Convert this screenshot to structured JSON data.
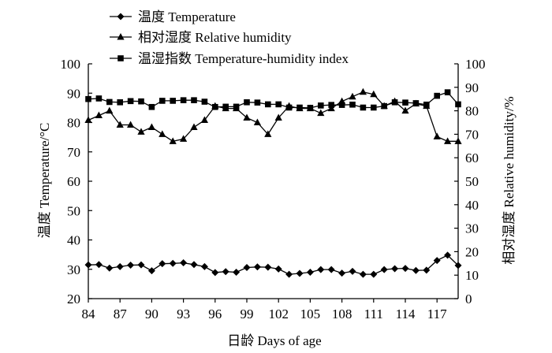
{
  "chart_data": {
    "type": "line",
    "xlabel": "日龄 Days of age",
    "ylabel_left": "温度 Temperature/°C",
    "ylabel_right": "相对湿度 Relative humidity/%",
    "x_ticks": [
      "84",
      "87",
      "90",
      "93",
      "96",
      "99",
      "102",
      "105",
      "108",
      "111",
      "114",
      "117"
    ],
    "y_left_ticks": [
      "20",
      "30",
      "40",
      "50",
      "60",
      "70",
      "80",
      "90",
      "100"
    ],
    "y_right_ticks": [
      "0",
      "10",
      "20",
      "30",
      "40",
      "50",
      "60",
      "70",
      "80",
      "90",
      "100"
    ],
    "xlim": [
      84,
      119
    ],
    "ylim_left": [
      20,
      100
    ],
    "ylim_right": [
      0,
      100
    ],
    "grid": false,
    "legend_position": "top-left",
    "series": [
      {
        "name": "温度 Temperature",
        "marker": "diamond",
        "axis": "left",
        "x": [
          84,
          85,
          86,
          87,
          88,
          89,
          90,
          91,
          92,
          93,
          94,
          95,
          96,
          97,
          98,
          99,
          100,
          101,
          102,
          103,
          104,
          105,
          106,
          107,
          108,
          109,
          110,
          111,
          112,
          113,
          114,
          115,
          116,
          117,
          118,
          119
        ],
        "values": [
          31.5,
          31.6,
          30.4,
          30.9,
          31.4,
          31.5,
          29.5,
          31.9,
          32.0,
          32.2,
          31.6,
          30.9,
          28.9,
          29.2,
          29.0,
          30.6,
          30.8,
          30.7,
          30.1,
          28.3,
          28.6,
          29.0,
          29.9,
          29.9,
          28.7,
          29.3,
          28.3,
          28.3,
          29.9,
          30.2,
          30.3,
          29.6,
          29.7,
          33.0,
          34.8,
          31.3
        ]
      },
      {
        "name": "相对湿度  Relative humidity",
        "marker": "triangle",
        "axis": "right",
        "x": [
          84,
          85,
          86,
          87,
          88,
          89,
          90,
          91,
          92,
          93,
          94,
          95,
          96,
          97,
          98,
          99,
          100,
          101,
          102,
          103,
          104,
          105,
          106,
          107,
          108,
          109,
          110,
          111,
          112,
          113,
          114,
          115,
          116,
          117,
          118,
          119
        ],
        "values": [
          76,
          78,
          80,
          74,
          74,
          71,
          73,
          70,
          67,
          68,
          73,
          76,
          82,
          81,
          81,
          77,
          75,
          70,
          77,
          82,
          81,
          81,
          79,
          81,
          84,
          86,
          88,
          87,
          82,
          84,
          80,
          83,
          82,
          69,
          67,
          67
        ]
      },
      {
        "name": "温湿指数  Temperature-humidity index",
        "marker": "square",
        "axis": "left",
        "x": [
          84,
          85,
          86,
          87,
          88,
          89,
          90,
          91,
          92,
          93,
          94,
          95,
          96,
          97,
          98,
          99,
          100,
          101,
          102,
          103,
          104,
          105,
          106,
          107,
          108,
          109,
          110,
          111,
          112,
          113,
          114,
          115,
          116,
          117,
          118,
          119
        ],
        "values": [
          88.0,
          88.2,
          87.0,
          86.9,
          87.3,
          87.2,
          85.3,
          87.4,
          87.4,
          87.6,
          87.6,
          87.1,
          85.3,
          85.4,
          85.4,
          86.9,
          86.8,
          86.2,
          86.2,
          85.1,
          85.1,
          85.0,
          85.8,
          86.0,
          86.0,
          86.1,
          85.1,
          85.1,
          85.6,
          86.9,
          86.8,
          86.6,
          86.1,
          89.1,
          90.3,
          86.2
        ]
      }
    ]
  }
}
